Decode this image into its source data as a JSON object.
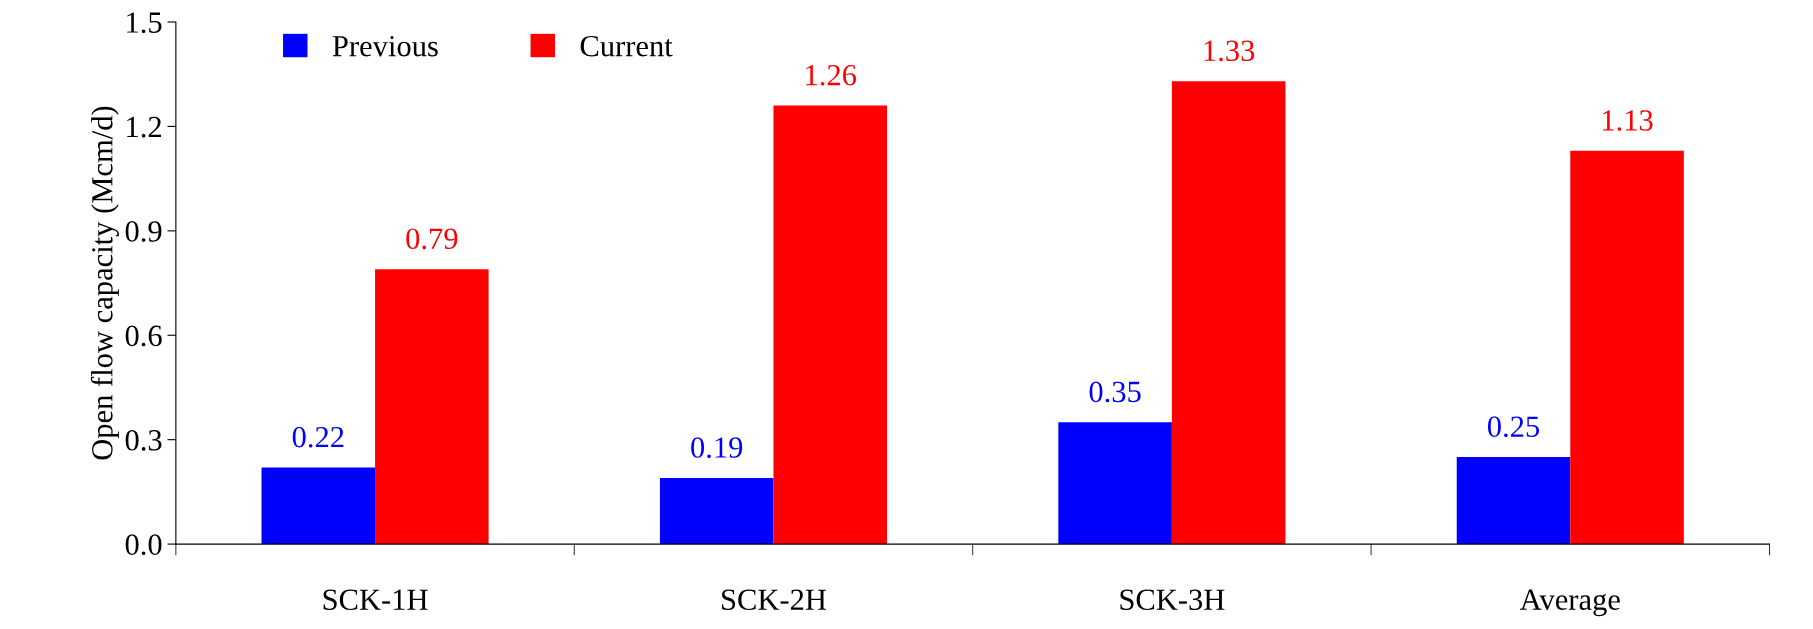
{
  "chart_data": {
    "type": "bar",
    "ylabel": "Open flow capacity (Mcm/d)",
    "categories": [
      "SCK-1H",
      "SCK-2H",
      "SCK-3H",
      "Average"
    ],
    "series": [
      {
        "name": "Previous",
        "color": "#0000ff",
        "values": [
          0.22,
          0.19,
          0.35,
          0.25
        ]
      },
      {
        "name": "Current",
        "color": "#ff0000",
        "values": [
          0.79,
          1.26,
          1.33,
          1.13
        ]
      }
    ],
    "ylim": [
      0,
      1.5
    ],
    "yticks": [
      {
        "value": 0,
        "label": "0.0"
      },
      0.3,
      0.6,
      0.9,
      1.2,
      1.5
    ],
    "data_labels": true,
    "grid": false,
    "legend": "top left"
  }
}
